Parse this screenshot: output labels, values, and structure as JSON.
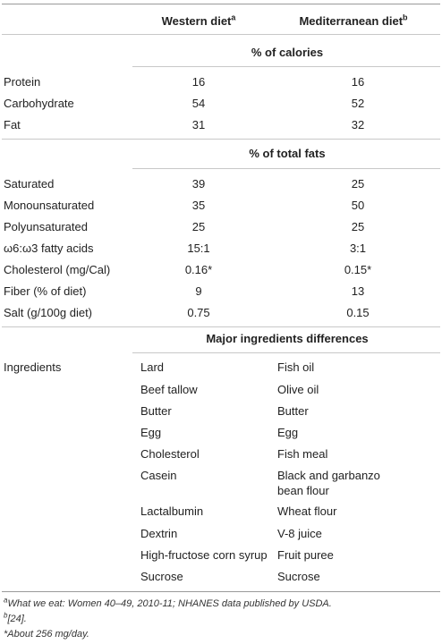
{
  "header": {
    "western": "Western diet",
    "western_sup": "a",
    "mediterranean": "Mediterranean diet",
    "mediterranean_sup": "b"
  },
  "sections": {
    "calories": "% of calories",
    "fats": "% of total fats",
    "ingredients": "Major ingredients differences"
  },
  "calorie_rows": [
    {
      "label": "Protein",
      "western": "16",
      "mediterranean": "16"
    },
    {
      "label": "Carbohydrate",
      "western": "54",
      "mediterranean": "52"
    },
    {
      "label": "Fat",
      "western": "31",
      "mediterranean": "32"
    }
  ],
  "fat_rows": [
    {
      "label": "Saturated",
      "western": "39",
      "mediterranean": "25"
    },
    {
      "label": "Monounsaturated",
      "western": "35",
      "mediterranean": "50"
    },
    {
      "label": "Polyunsaturated",
      "western": "25",
      "mediterranean": "25"
    },
    {
      "label": "ω6:ω3 fatty acids",
      "western": "15:1",
      "mediterranean": "3:1"
    },
    {
      "label": "Cholesterol (mg/Cal)",
      "western": "0.16*",
      "mediterranean": "0.15*"
    },
    {
      "label": "Fiber (% of diet)",
      "western": "9",
      "mediterranean": "13"
    },
    {
      "label": "Salt (g/100g diet)",
      "western": "0.75",
      "mediterranean": "0.15"
    }
  ],
  "ingredients": {
    "label": "Ingredients",
    "rows": [
      {
        "western": "Lard",
        "mediterranean": "Fish oil"
      },
      {
        "western": "Beef tallow",
        "mediterranean": "Olive oil"
      },
      {
        "western": "Butter",
        "mediterranean": "Butter"
      },
      {
        "western": "Egg",
        "mediterranean": "Egg"
      },
      {
        "western": "Cholesterol",
        "mediterranean": "Fish meal"
      },
      {
        "western": "Casein",
        "mediterranean": "Black and garbanzo",
        "mediterranean_line2": "bean flour"
      },
      {
        "western": "Lactalbumin",
        "mediterranean": "Wheat flour"
      },
      {
        "western": "Dextrin",
        "mediterranean": "V-8 juice"
      },
      {
        "western": "High-fructose corn syrup",
        "mediterranean": "Fruit puree"
      },
      {
        "western": "Sucrose",
        "mediterranean": "Sucrose"
      }
    ]
  },
  "footnotes": {
    "a_mark": "a",
    "a_text": "What we eat: Women 40–49, 2010-11; NHANES data published by USDA.",
    "b_mark": "b",
    "b_text": "[24].",
    "star_text": "*About 256 mg/day."
  }
}
